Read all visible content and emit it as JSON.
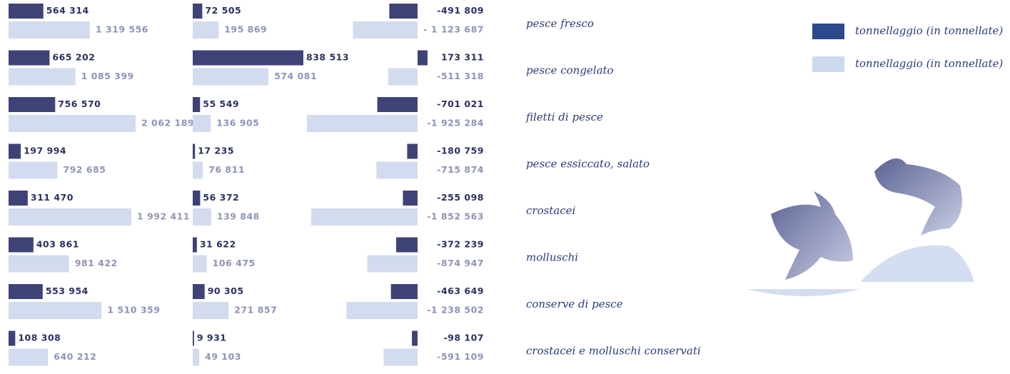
{
  "chart_data": {
    "type": "bar",
    "orientation": "horizontal",
    "categories": [
      "pesce fresco",
      "pesce congelato",
      "filetti di pesce",
      "pesce essiccato, salato",
      "crostacei",
      "molluschi",
      "conserve di pesce",
      "crostacei e molluschi conservati"
    ],
    "series": [
      {
        "name": "tonnellaggio (in tonnellate)",
        "color": "#3f4276"
      },
      {
        "name": "tonnellaggio (in tonnellate)",
        "color": "#d3dbee"
      }
    ],
    "panels": [
      {
        "series": [
          {
            "values": [
              564314,
              665202,
              756570,
              197994,
              311470,
              403861,
              553954,
              108308
            ],
            "value_labels": [
              "564 314",
              "665 202",
              "756 570",
              "197 994",
              "311 470",
              "403 861",
              "553 954",
              "108 308"
            ]
          },
          {
            "values": [
              1319556,
              1085399,
              2062189,
              792685,
              1992411,
              981422,
              1510359,
              640212
            ],
            "value_labels": [
              "1 319 556",
              "1 085 399",
              "2 062 189",
              "792 685",
              "1 992 411",
              "981 422",
              "1 510 359",
              "640 212"
            ]
          }
        ]
      },
      {
        "series": [
          {
            "values": [
              72505,
              838513,
              55549,
              17235,
              56372,
              31622,
              90305,
              9931
            ],
            "value_labels": [
              "72 505",
              "838 513",
              "55 549",
              "17 235",
              "56 372",
              "31 622",
              "90 305",
              "9 931"
            ]
          },
          {
            "values": [
              195869,
              574081,
              136905,
              76811,
              139848,
              106475,
              271857,
              49103
            ],
            "value_labels": [
              "195 869",
              "574 081",
              "136 905",
              "76 811",
              "139 848",
              "106 475",
              "271 857",
              "49 103"
            ]
          }
        ]
      },
      {
        "series": [
          {
            "values": [
              -491809,
              173311,
              -701021,
              -180759,
              -255098,
              -372239,
              -463649,
              -98107
            ],
            "value_labels": [
              "-491 809",
              "173 311",
              "-701 021",
              "-180 759",
              "-255 098",
              "-372 239",
              "-463 649",
              "-98 107"
            ]
          },
          {
            "values": [
              -1123687,
              -511318,
              -1925284,
              -715874,
              -1852563,
              -874947,
              -1238502,
              -591109
            ],
            "value_labels": [
              "- 1 123 687",
              "-511 318",
              "-1 925 284",
              "-715 874",
              "-1 852 563",
              "-874 947",
              "-1 238 502",
              "-591 109"
            ]
          }
        ]
      }
    ]
  }
}
